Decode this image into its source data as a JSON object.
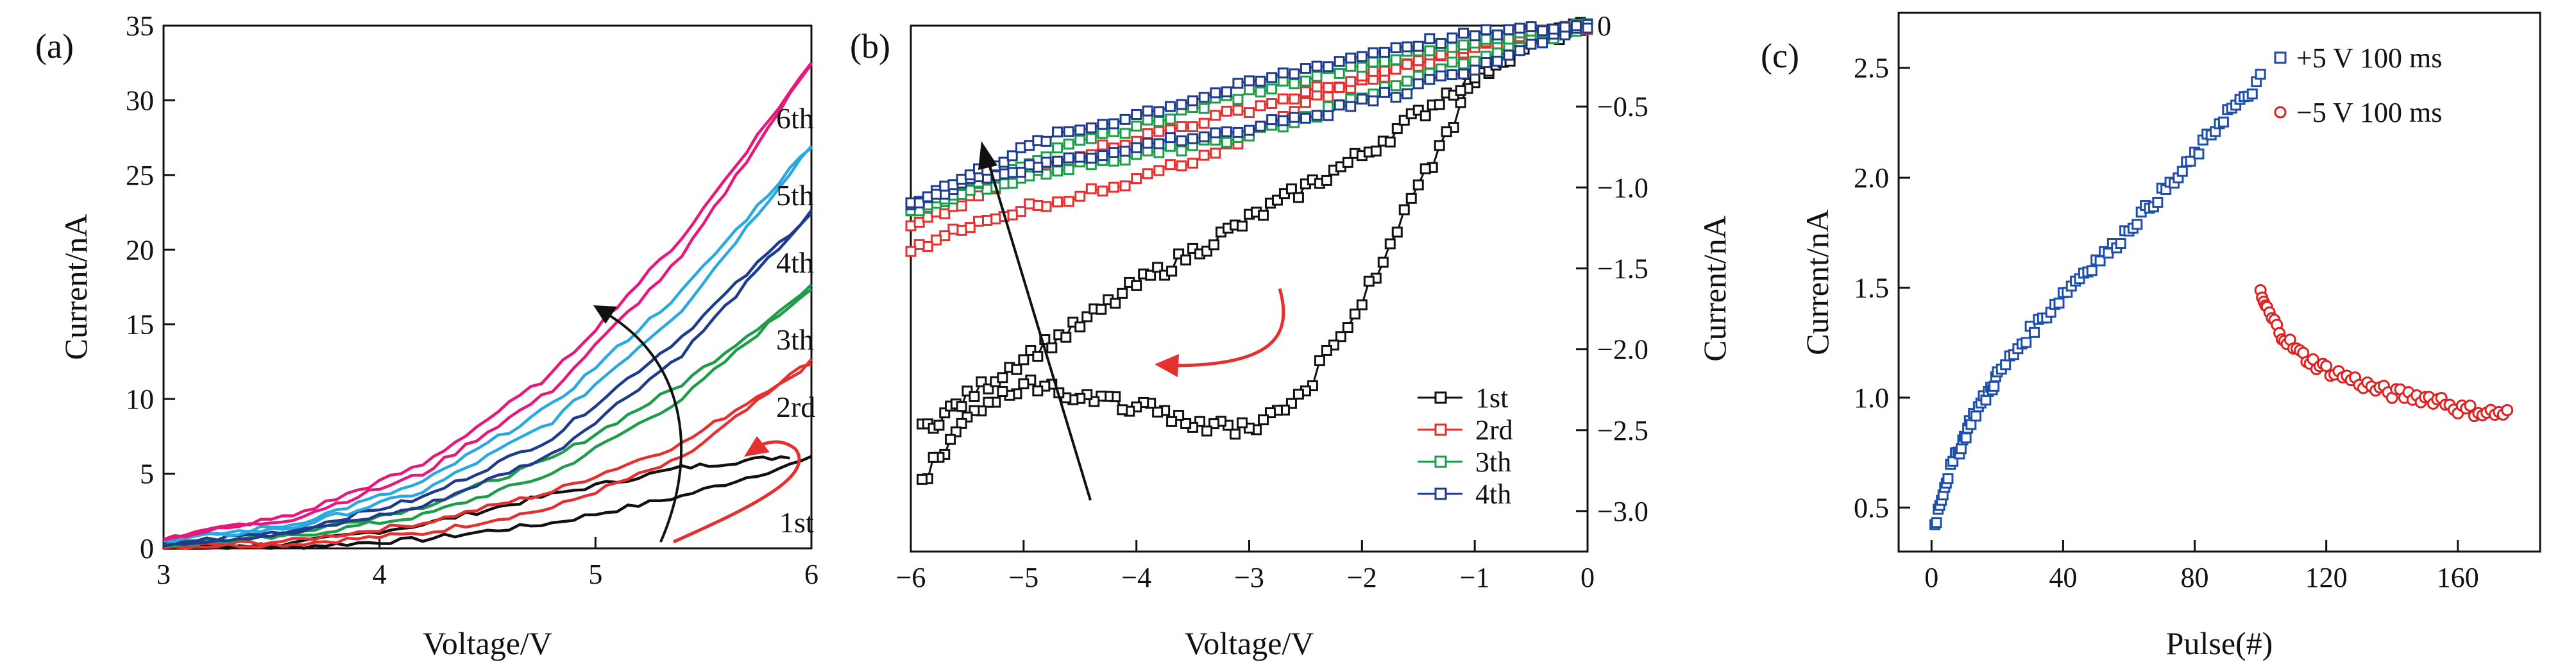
{
  "figure": {
    "panels": [
      "(a)",
      "(b)",
      "(c)"
    ]
  },
  "chart_data": [
    {
      "panel": "(a)",
      "type": "line",
      "xlabel": "Voltage/V",
      "ylabel": "Current/nA",
      "xlim": [
        3,
        6
      ],
      "ylim": [
        0,
        35
      ],
      "xticks": [
        3,
        4,
        5,
        6
      ],
      "yticks": [
        0,
        5,
        10,
        15,
        20,
        25,
        30,
        35
      ],
      "annotations": [
        "1st",
        "2rd",
        "3th",
        "4th",
        "5th",
        "6th"
      ],
      "series": [
        {
          "name": "1st",
          "color": "#111111",
          "x_up": [
            3.0,
            3.6,
            4.2,
            4.8,
            5.4,
            6.0
          ],
          "y_up": [
            0.0,
            0.1,
            0.6,
            1.7,
            3.5,
            6.0
          ],
          "x_down": [
            3.0,
            3.6,
            4.2,
            4.8,
            5.4,
            5.9
          ],
          "y_down": [
            0.0,
            0.3,
            1.6,
            3.6,
            5.4,
            6.2
          ]
        },
        {
          "name": "2rd",
          "color": "#e53030",
          "x_up": [
            3.0,
            3.6,
            4.2,
            4.8,
            5.4,
            6.0
          ],
          "y_up": [
            0.1,
            0.3,
            1.0,
            2.7,
            6.0,
            12.5
          ],
          "x_down": [
            3.0,
            3.6,
            4.2,
            4.8,
            5.4,
            6.0
          ],
          "y_down": [
            0.1,
            0.5,
            1.7,
            3.8,
            7.0,
            12.5
          ]
        },
        {
          "name": "3th",
          "color": "#1e9c4a",
          "x_up": [
            3.0,
            3.6,
            4.2,
            4.8,
            5.4,
            6.0
          ],
          "y_up": [
            0.2,
            0.8,
            2.2,
            5.0,
            10.0,
            17.5
          ],
          "x_down": [
            3.0,
            3.6,
            4.2,
            4.8,
            5.4,
            6.0
          ],
          "y_down": [
            0.2,
            1.0,
            2.8,
            6.0,
            11.0,
            17.5
          ]
        },
        {
          "name": "4th",
          "color": "#1f3c8c",
          "x_up": [
            3.0,
            3.6,
            4.2,
            4.8,
            5.4,
            6.0
          ],
          "y_up": [
            0.3,
            1.0,
            2.8,
            6.3,
            13.0,
            22.5
          ],
          "x_down": [
            3.0,
            3.6,
            4.2,
            4.8,
            5.4,
            6.0
          ],
          "y_down": [
            0.3,
            1.2,
            3.4,
            7.4,
            14.2,
            22.5
          ]
        },
        {
          "name": "5th",
          "color": "#2aa8e0",
          "x_up": [
            3.0,
            3.6,
            4.2,
            4.8,
            5.4,
            6.0
          ],
          "y_up": [
            0.5,
            1.4,
            3.8,
            8.5,
            16.0,
            27.0
          ],
          "x_down": [
            3.0,
            3.6,
            4.2,
            4.8,
            5.4,
            6.0
          ],
          "y_down": [
            0.5,
            1.6,
            4.4,
            9.6,
            17.2,
            27.0
          ]
        },
        {
          "name": "6th",
          "color": "#e6187a",
          "x_up": [
            3.0,
            3.6,
            4.2,
            4.8,
            5.4,
            6.0
          ],
          "y_up": [
            0.7,
            2.0,
            5.0,
            10.6,
            19.5,
            32.5
          ],
          "x_down": [
            3.0,
            3.6,
            4.2,
            4.8,
            5.4,
            6.0
          ],
          "y_down": [
            0.7,
            2.2,
            5.6,
            11.7,
            20.8,
            32.5
          ]
        }
      ]
    },
    {
      "panel": "(b)",
      "type": "line",
      "xlabel": "Voltage/V",
      "ylabel": "Current/nA",
      "xlim": [
        -6,
        0
      ],
      "ylim": [
        -3.25,
        0
      ],
      "xticks": [
        -6,
        -5,
        -4,
        -3,
        -2,
        -1,
        0
      ],
      "xticklabels": [
        "−6",
        "−5",
        "−4",
        "−3",
        "−2",
        "−1",
        "0"
      ],
      "yticks": [
        0,
        -0.5,
        -1.0,
        -1.5,
        -2.0,
        -2.5,
        -3.0
      ],
      "yticklabels": [
        "0",
        "−0.5",
        "−1.0",
        "−1.5",
        "−2.0",
        "−2.5",
        "−3.0"
      ],
      "legend": [
        "1st",
        "2rd",
        "3th",
        "4th"
      ],
      "series": [
        {
          "name": "1st",
          "color": "#111111",
          "x_a": [
            0.0,
            -0.5,
            -1.0,
            -1.5,
            -2.0,
            -2.5,
            -3.0,
            -3.5,
            -4.0,
            -4.5,
            -5.0,
            -5.5,
            -5.9
          ],
          "y_a": [
            0.0,
            -0.05,
            -0.35,
            -1.0,
            -1.7,
            -2.25,
            -2.5,
            -2.45,
            -2.35,
            -2.3,
            -2.2,
            -2.45,
            -2.8
          ],
          "x_b": [
            -5.9,
            -5.5,
            -5.0,
            -4.5,
            -4.0,
            -3.5,
            -3.0,
            -2.5,
            -2.0,
            -1.5,
            -1.0,
            -0.5,
            0.0
          ],
          "y_b": [
            -2.5,
            -2.3,
            -2.05,
            -1.85,
            -1.6,
            -1.4,
            -1.2,
            -1.0,
            -0.8,
            -0.55,
            -0.3,
            -0.1,
            0.0
          ]
        },
        {
          "name": "2rd",
          "color": "#e53030",
          "x_a": [
            0.0,
            -0.8,
            -1.6,
            -2.4,
            -3.2,
            -4.0,
            -4.8,
            -5.4,
            -6.0
          ],
          "y_a": [
            0.0,
            -0.1,
            -0.25,
            -0.45,
            -0.75,
            -0.95,
            -1.1,
            -1.2,
            -1.4
          ],
          "x_b": [
            -6.0,
            -5.4,
            -4.8,
            -4.0,
            -3.2,
            -2.4,
            -1.6,
            -0.8,
            0.0
          ],
          "y_b": [
            -1.25,
            -1.05,
            -0.85,
            -0.7,
            -0.55,
            -0.4,
            -0.25,
            -0.1,
            0.0
          ]
        },
        {
          "name": "3th",
          "color": "#1e9c4a",
          "x_a": [
            0.0,
            -0.8,
            -1.6,
            -2.4,
            -3.2,
            -4.0,
            -4.8,
            -5.4,
            -6.0
          ],
          "y_a": [
            0.0,
            -0.15,
            -0.35,
            -0.55,
            -0.7,
            -0.8,
            -0.9,
            -1.0,
            -1.15
          ],
          "x_b": [
            -6.0,
            -5.4,
            -4.8,
            -4.0,
            -3.2,
            -2.4,
            -1.6,
            -0.8,
            0.0
          ],
          "y_b": [
            -1.15,
            -0.95,
            -0.8,
            -0.62,
            -0.45,
            -0.3,
            -0.18,
            -0.07,
            0.0
          ]
        },
        {
          "name": "4th",
          "color": "#1f3c8c",
          "x_a": [
            0.0,
            -0.8,
            -1.6,
            -2.4,
            -3.2,
            -4.0,
            -4.8,
            -5.4,
            -6.0
          ],
          "y_a": [
            0.0,
            -0.2,
            -0.4,
            -0.55,
            -0.65,
            -0.75,
            -0.85,
            -0.95,
            -1.1
          ],
          "x_b": [
            -6.0,
            -5.4,
            -4.8,
            -4.0,
            -3.2,
            -2.4,
            -1.6,
            -0.8,
            0.0
          ],
          "y_b": [
            -1.1,
            -0.9,
            -0.7,
            -0.55,
            -0.4,
            -0.25,
            -0.12,
            -0.04,
            0.0
          ]
        }
      ]
    },
    {
      "panel": "(c)",
      "type": "scatter",
      "xlabel": "Pulse(#)",
      "ylabel": "Current/nA",
      "xlim": [
        -10,
        185
      ],
      "ylim": [
        0.3,
        2.75
      ],
      "xticks": [
        0,
        40,
        80,
        120,
        160
      ],
      "yticks": [
        0.5,
        1.0,
        1.5,
        2.0,
        2.5
      ],
      "yticklabels": [
        "0.5",
        "1.0",
        "1.5",
        "2.0",
        "2.5"
      ],
      "legend": [
        "+5 V 100 ms",
        "−5 V 100 ms"
      ],
      "series": [
        {
          "name": "+5 V 100 ms",
          "marker": "square",
          "color": "#1f4ea8",
          "x": [
            1,
            3,
            5,
            8,
            10,
            12,
            15,
            18,
            20,
            25,
            30,
            35,
            40,
            45,
            50,
            55,
            60,
            65,
            70,
            75,
            80,
            85,
            90,
            95,
            100
          ],
          "y": [
            0.42,
            0.55,
            0.65,
            0.75,
            0.82,
            0.9,
            0.97,
            1.04,
            1.1,
            1.2,
            1.3,
            1.38,
            1.47,
            1.55,
            1.62,
            1.68,
            1.77,
            1.85,
            1.93,
            2.0,
            2.1,
            2.2,
            2.3,
            2.35,
            2.45
          ]
        },
        {
          "name": "−5 V 100 ms",
          "marker": "circle",
          "color": "#e02020",
          "x": [
            100,
            102,
            105,
            108,
            112,
            116,
            120,
            125,
            130,
            135,
            140,
            145,
            150,
            155,
            160,
            165,
            170,
            175
          ],
          "y": [
            1.47,
            1.4,
            1.32,
            1.26,
            1.2,
            1.16,
            1.13,
            1.1,
            1.07,
            1.04,
            1.02,
            1.01,
            1.0,
            0.99,
            0.95,
            0.94,
            0.93,
            0.93
          ]
        }
      ]
    }
  ]
}
